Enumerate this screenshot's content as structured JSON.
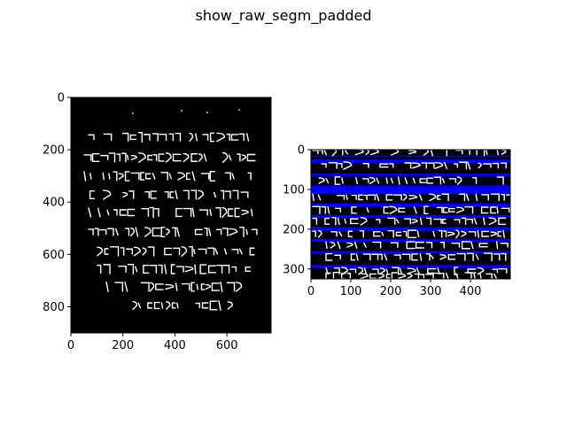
{
  "figure": {
    "title": "show_raw_segm_padded"
  },
  "colors": {
    "background": "#000000",
    "ink": "#ffffff",
    "band": "#0000ff"
  },
  "chart_data": [
    {
      "type": "image",
      "name": "raw_image",
      "content": "binarized manuscript fragment, white Hebrew script on black background",
      "xlim": [
        0,
        770
      ],
      "ylim": [
        900,
        0
      ],
      "xticks": [
        0,
        200,
        400,
        600
      ],
      "yticks": [
        0,
        200,
        400,
        600,
        800
      ],
      "text_lines": 12
    },
    {
      "type": "image",
      "name": "segmented_padded",
      "content": "extracted text lines stacked vertically with blue separator bands",
      "xlim": [
        0,
        500
      ],
      "ylim": [
        325,
        0
      ],
      "xticks": [
        0,
        100,
        200,
        300,
        400
      ],
      "yticks": [
        0,
        100,
        200,
        300
      ],
      "bands": [
        [
          15,
          18
        ],
        [
          25,
          35
        ],
        [
          60,
          68
        ],
        [
          90,
          112
        ],
        [
          135,
          145
        ],
        [
          165,
          172
        ],
        [
          195,
          205
        ],
        [
          225,
          232
        ],
        [
          255,
          262
        ],
        [
          290,
          298
        ]
      ]
    }
  ]
}
